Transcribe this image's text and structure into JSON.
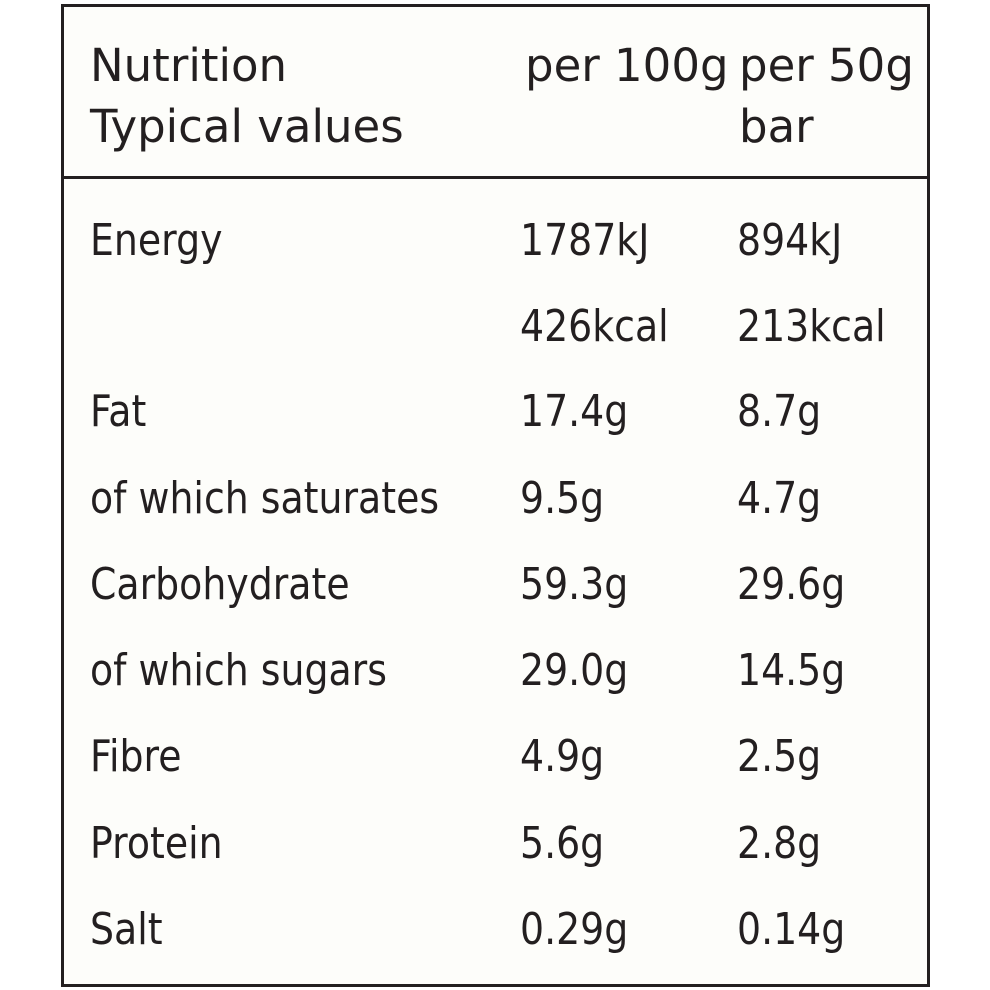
{
  "header": {
    "title_line1": "Nutrition",
    "title_line2": "Typical values",
    "col1": "per 100g",
    "col2_line1": "per 50g",
    "col2_line2": "bar"
  },
  "rows": [
    {
      "label": "Energy",
      "per100g": "1787kJ",
      "per50g": "894kJ"
    },
    {
      "label": "",
      "per100g": "426kcal",
      "per50g": "213kcal"
    },
    {
      "label": "Fat",
      "per100g": "17.4g",
      "per50g": "8.7g"
    },
    {
      "label": "of which saturates",
      "per100g": "9.5g",
      "per50g": "4.7g"
    },
    {
      "label": "Carbohydrate",
      "per100g": "59.3g",
      "per50g": "29.6g"
    },
    {
      "label": "of which sugars",
      "per100g": "29.0g",
      "per50g": "14.5g"
    },
    {
      "label": "Fibre",
      "per100g": "4.9g",
      "per50g": "2.5g"
    },
    {
      "label": "Protein",
      "per100g": "5.6g",
      "per50g": "2.8g"
    },
    {
      "label": "Salt",
      "per100g": "0.29g",
      "per50g": "0.14g"
    }
  ]
}
